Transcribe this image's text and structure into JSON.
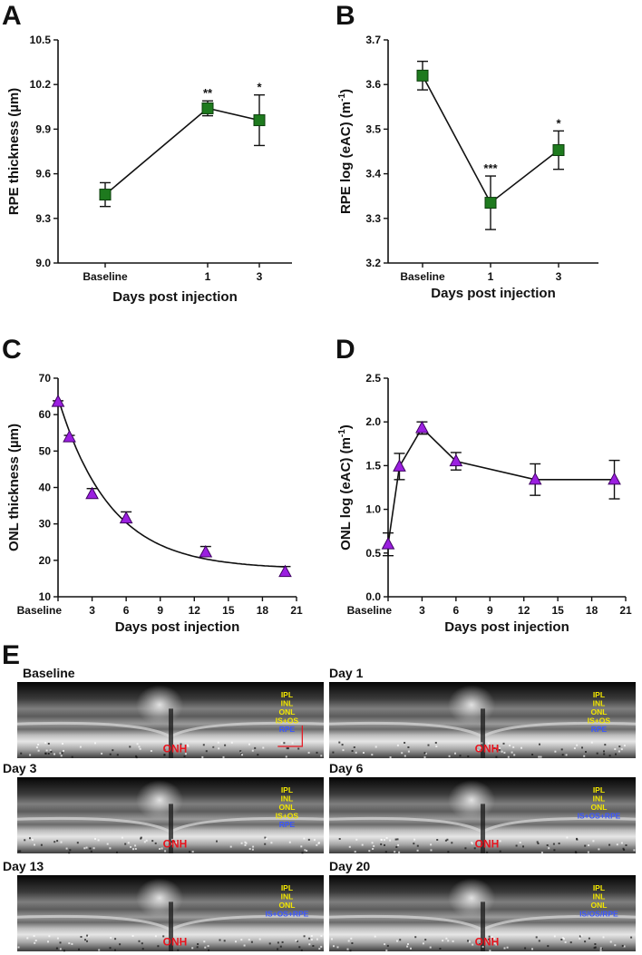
{
  "panel_letters": {
    "a": "A",
    "b": "B",
    "c": "C",
    "d": "D",
    "e": "E"
  },
  "colors": {
    "square": "#1e7a1e",
    "triangle": "#9b1fe0",
    "onh": "#e8141e",
    "layer_yellow": "#f2e600",
    "layer_blue": "#3a56ff"
  },
  "chart_data": [
    {
      "id": "A",
      "type": "line",
      "categories": [
        "Baseline",
        "1",
        "3"
      ],
      "values": [
        9.46,
        10.04,
        9.96
      ],
      "errors": [
        0.08,
        0.05,
        0.17
      ],
      "significance": [
        "",
        "**",
        "*"
      ],
      "ylabel": "RPE thickness (µm)",
      "xlabel": "Days post injection",
      "ylim": [
        9.0,
        10.5
      ],
      "yticks": [
        "9.0",
        "9.3",
        "9.6",
        "9.9",
        "10.2",
        "10.5"
      ],
      "marker": "square"
    },
    {
      "id": "B",
      "type": "line",
      "categories": [
        "Baseline",
        "1",
        "3"
      ],
      "values": [
        3.62,
        3.335,
        3.453
      ],
      "errors": [
        0.032,
        0.06,
        0.043
      ],
      "significance": [
        "",
        "***",
        "*"
      ],
      "ylabel_prefix": "RPE log (eAC) (m",
      "ylabel_sup": "-1",
      "ylabel_suffix": ")",
      "xlabel": "Days post injection",
      "ylim": [
        3.2,
        3.7
      ],
      "yticks": [
        "3.2",
        "3.3",
        "3.4",
        "3.5",
        "3.6",
        "3.7"
      ],
      "marker": "square"
    },
    {
      "id": "C",
      "type": "scatter",
      "x": [
        0,
        1,
        3,
        6,
        13,
        20
      ],
      "values": [
        63.5,
        53.8,
        38.2,
        31.5,
        22.2,
        16.8
      ],
      "errors_up": [
        0.3,
        0.5,
        1.5,
        1.8,
        1.6,
        1.5
      ],
      "errors_down": [
        0,
        0,
        0,
        0,
        0,
        0
      ],
      "fit": "exponential decay",
      "ylabel": "ONL thickness (µm)",
      "xlabel": "Days post injection",
      "ylim": [
        10,
        70
      ],
      "yticks": [
        "10",
        "20",
        "30",
        "40",
        "50",
        "60",
        "70"
      ],
      "xticks": [
        "Baseline",
        "3",
        "6",
        "9",
        "12",
        "15",
        "18",
        "21"
      ],
      "marker": "triangle"
    },
    {
      "id": "D",
      "type": "line",
      "x": [
        0,
        1,
        3,
        6,
        13,
        20
      ],
      "values": [
        0.6,
        1.49,
        1.93,
        1.55,
        1.34,
        1.34
      ],
      "errors": [
        0.13,
        0.15,
        0.07,
        0.1,
        0.18,
        0.22
      ],
      "ylabel_prefix": "ONL log (eAC) (m",
      "ylabel_sup": "-1",
      "ylabel_suffix": ")",
      "xlabel": "Days post injection",
      "ylim": [
        0.0,
        2.5
      ],
      "yticks": [
        "0.0",
        "0.5",
        "1.0",
        "1.5",
        "2.0",
        "2.5"
      ],
      "xticks": [
        "Baseline",
        "3",
        "6",
        "9",
        "12",
        "15",
        "18",
        "21"
      ],
      "marker": "triangle"
    }
  ],
  "oct_images": [
    {
      "title": "Baseline",
      "onh": "ONH",
      "layers": [
        {
          "text": "IPL",
          "c": "y"
        },
        {
          "text": "INL",
          "c": "y"
        },
        {
          "text": "ONL",
          "c": "y"
        },
        {
          "text": "IS+OS",
          "c": "y"
        },
        {
          "text": "RPE",
          "c": "b"
        }
      ]
    },
    {
      "title": "Day 1",
      "onh": "ONH",
      "layers": [
        {
          "text": "IPL",
          "c": "y"
        },
        {
          "text": "INL",
          "c": "y"
        },
        {
          "text": "ONL",
          "c": "y"
        },
        {
          "text": "IS+OS",
          "c": "y"
        },
        {
          "text": "RPE",
          "c": "b"
        }
      ]
    },
    {
      "title": "Day 3",
      "onh": "ONH",
      "layers": [
        {
          "text": "IPL",
          "c": "y"
        },
        {
          "text": "INL",
          "c": "y"
        },
        {
          "text": "ONL",
          "c": "y"
        },
        {
          "text": "IS+OS",
          "c": "y"
        },
        {
          "text": "RPE",
          "c": "b"
        }
      ]
    },
    {
      "title": "Day 6",
      "onh": "ONH",
      "layers": [
        {
          "text": "IPL",
          "c": "y"
        },
        {
          "text": "INL",
          "c": "y"
        },
        {
          "text": "ONL",
          "c": "y"
        },
        {
          "text": "IS+OS+RPE",
          "c": "b"
        }
      ]
    },
    {
      "title": "Day 13",
      "onh": "ONH",
      "layers": [
        {
          "text": "IPL",
          "c": "y"
        },
        {
          "text": "INL",
          "c": "y"
        },
        {
          "text": "ONL",
          "c": "y"
        },
        {
          "text": "IS+OS+RPE",
          "c": "b"
        }
      ]
    },
    {
      "title": "Day 20",
      "onh": "ONH",
      "layers": [
        {
          "text": "IPL",
          "c": "y"
        },
        {
          "text": "INL",
          "c": "y"
        },
        {
          "text": "ONL",
          "c": "y"
        },
        {
          "text": "IS/OS/RPE",
          "c": "b"
        }
      ]
    }
  ]
}
